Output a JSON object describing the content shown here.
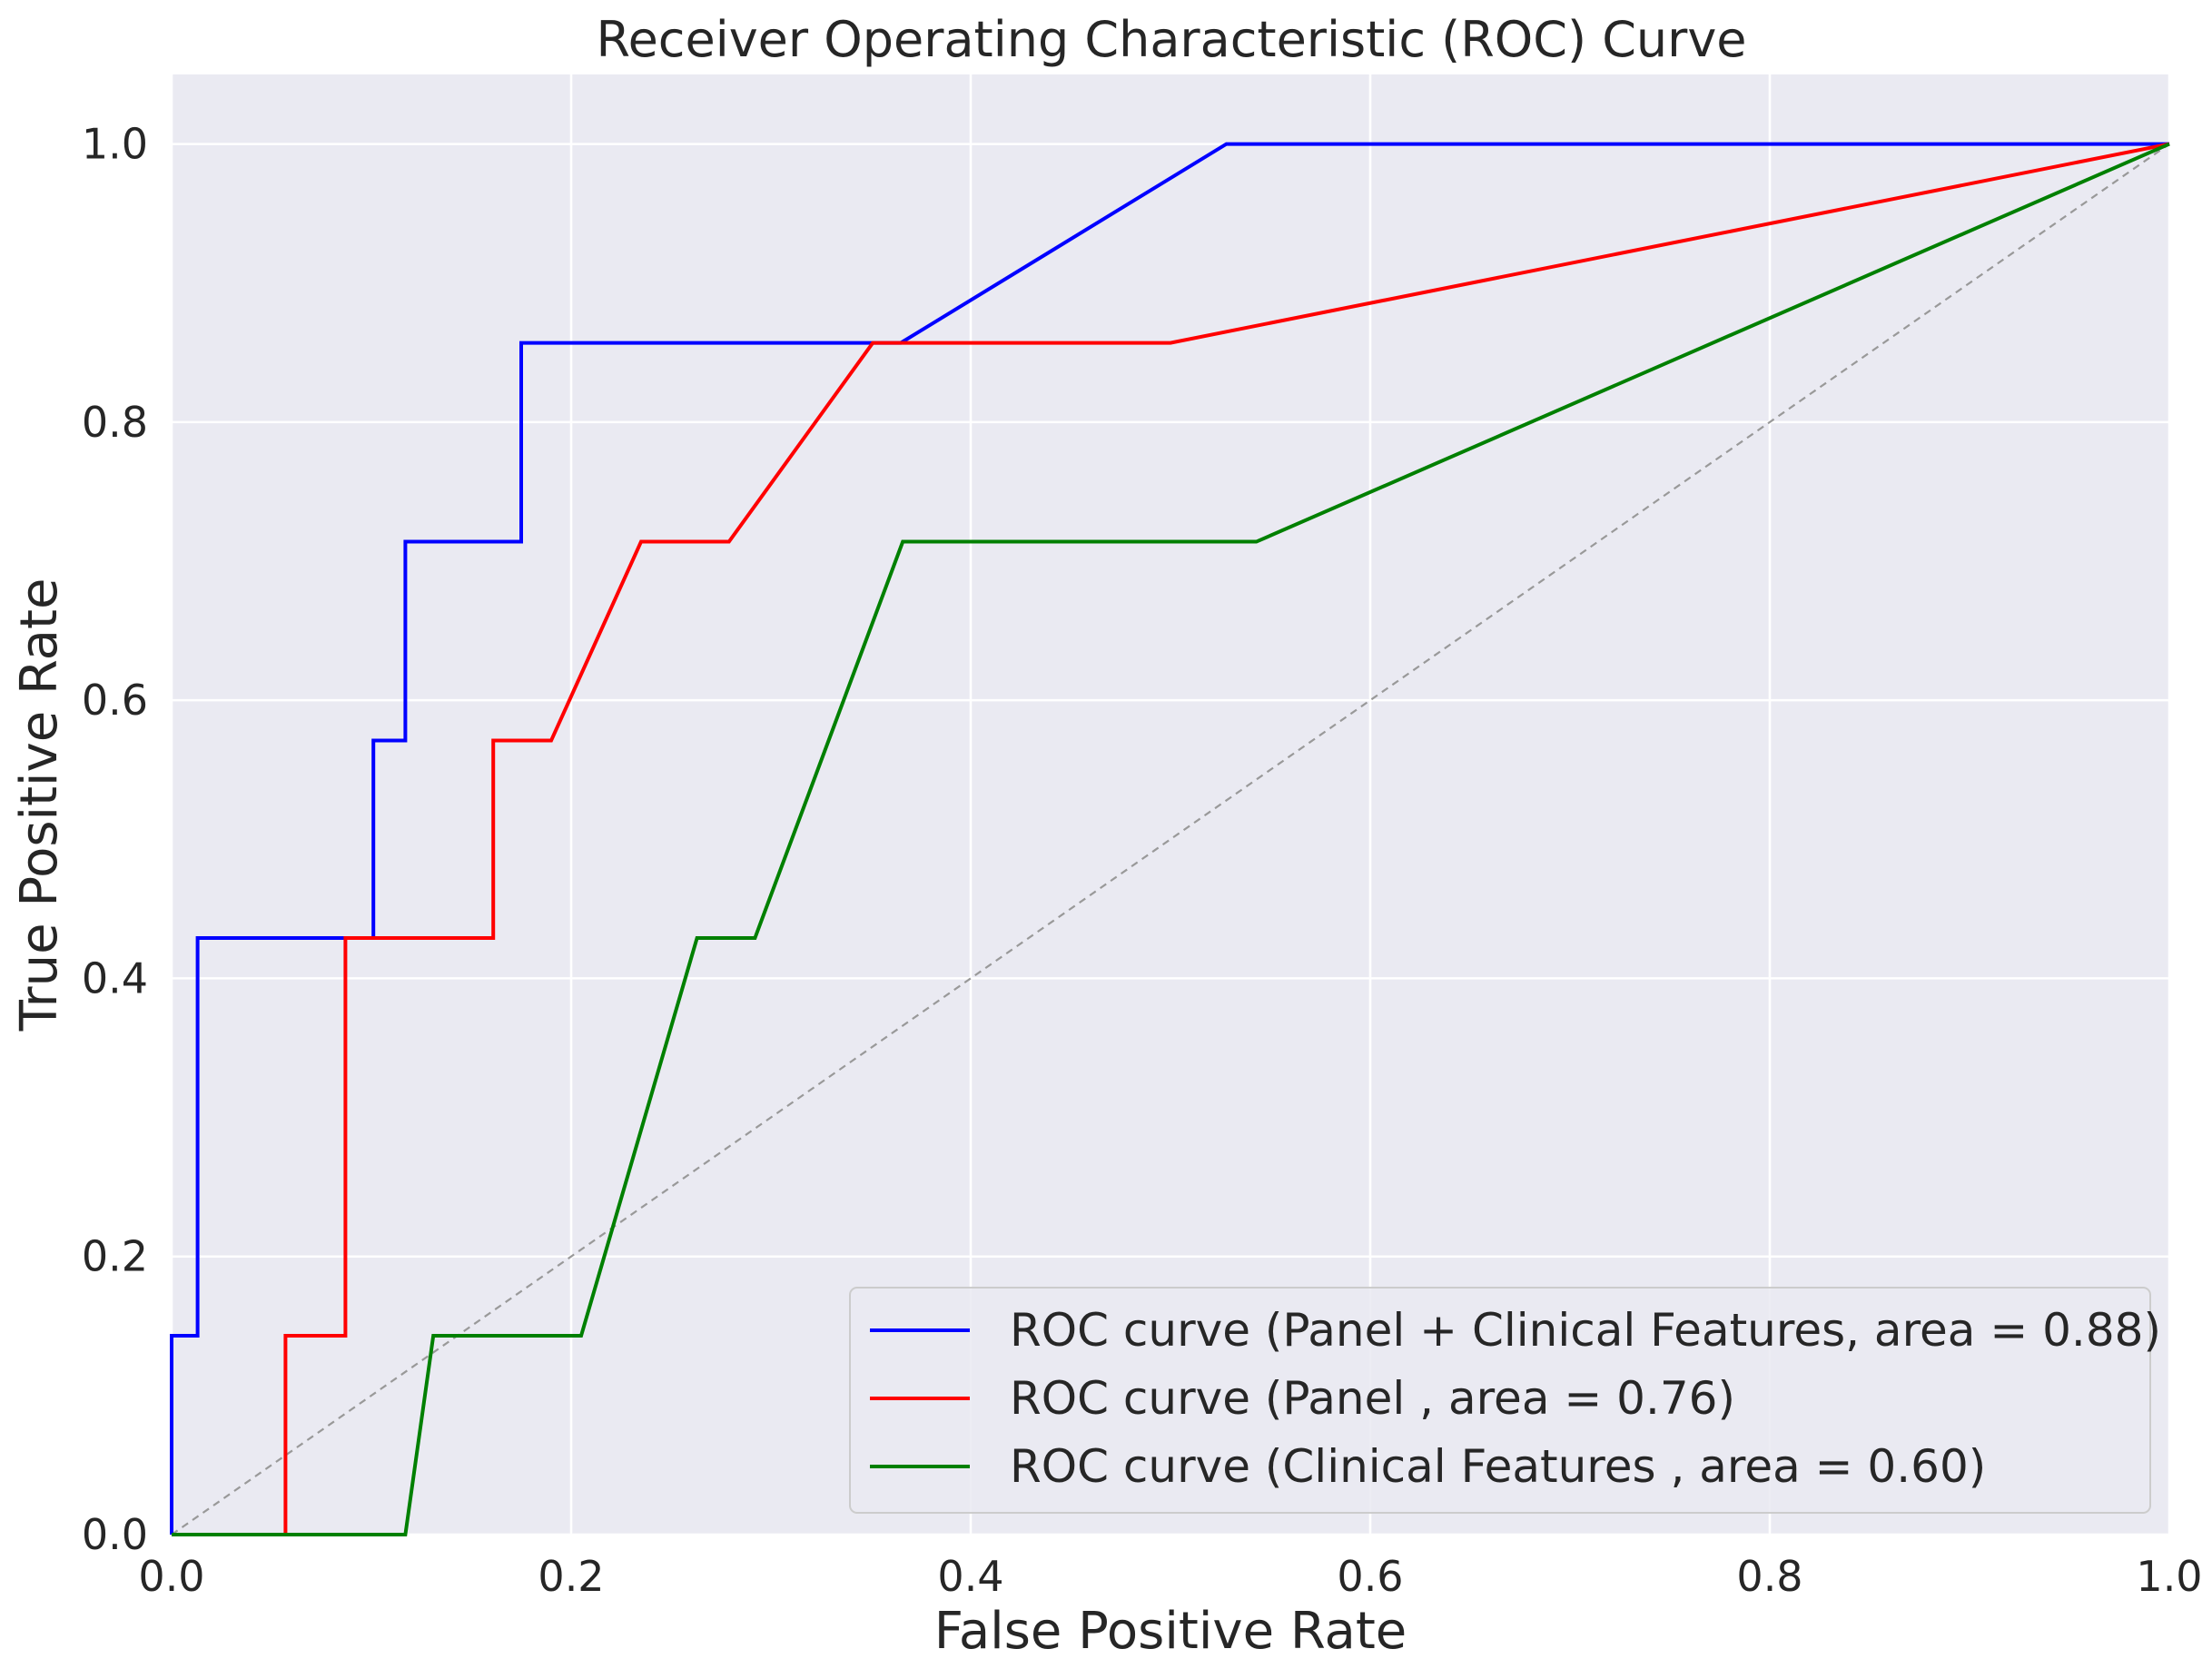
{
  "chart_data": {
    "type": "line",
    "title": "Receiver Operating Characteristic (ROC) Curve",
    "xlabel": "False Positive Rate",
    "ylabel": "True Positive Rate",
    "xlim": [
      0.0,
      1.0
    ],
    "ylim": [
      0.0,
      1.05
    ],
    "x_ticks": [
      "0.0",
      "0.2",
      "0.4",
      "0.6",
      "0.8",
      "1.0"
    ],
    "y_ticks": [
      "0.0",
      "0.2",
      "0.4",
      "0.6",
      "0.8",
      "1.0"
    ],
    "grid": true,
    "background_color": "#eaeaf2",
    "grid_color": "#ffffff",
    "legend_position": "lower-right",
    "series": [
      {
        "name": "ROC curve (Panel + Clinical Features, area = 0.88)",
        "color": "#0000ff",
        "x": [
          0.0,
          0.0,
          0.013,
          0.013,
          0.101,
          0.101,
          0.117,
          0.117,
          0.175,
          0.175,
          0.365,
          0.528,
          1.0
        ],
        "y": [
          0.0,
          0.143,
          0.143,
          0.429,
          0.429,
          0.571,
          0.571,
          0.714,
          0.714,
          0.857,
          0.857,
          1.0,
          1.0
        ]
      },
      {
        "name": "ROC curve (Panel , area = 0.76)",
        "color": "#ff0000",
        "x": [
          0.0,
          0.057,
          0.057,
          0.087,
          0.087,
          0.161,
          0.161,
          0.19,
          0.235,
          0.279,
          0.351,
          0.5,
          1.0
        ],
        "y": [
          0.0,
          0.0,
          0.143,
          0.143,
          0.429,
          0.429,
          0.571,
          0.571,
          0.714,
          0.714,
          0.857,
          0.857,
          1.0
        ]
      },
      {
        "name": "ROC curve (Clinical Features , area = 0.60)",
        "color": "#008000",
        "x": [
          0.0,
          0.117,
          0.131,
          0.205,
          0.263,
          0.292,
          0.366,
          0.543,
          1.0
        ],
        "y": [
          0.0,
          0.0,
          0.143,
          0.143,
          0.429,
          0.429,
          0.714,
          0.714,
          1.0
        ]
      }
    ],
    "reference_line": {
      "style": "dashed",
      "color": "#999999",
      "x": [
        0.0,
        1.0
      ],
      "y": [
        0.0,
        1.0
      ]
    }
  }
}
